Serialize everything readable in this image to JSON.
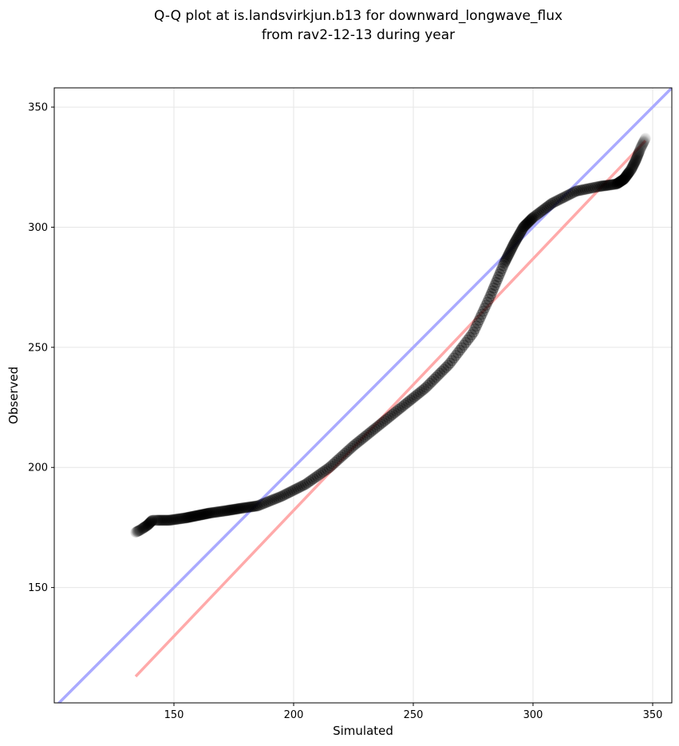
{
  "chart_data": {
    "type": "scatter",
    "title_lines": [
      "Q-Q plot at is.landsvirkjun.b13 for downward_longwave_flux",
      "from rav2-12-13 during year"
    ],
    "xlabel": "Simulated",
    "ylabel": "Observed",
    "xlim": [
      100,
      358
    ],
    "ylim": [
      102,
      358
    ],
    "xticks": [
      150,
      200,
      250,
      300,
      350
    ],
    "yticks": [
      150,
      200,
      250,
      300,
      350
    ],
    "grid": true,
    "reference_line": {
      "name": "1:1 line",
      "color": "#aaaaff",
      "from": [
        100,
        100
      ],
      "to": [
        358,
        358
      ]
    },
    "fit_line": {
      "name": "fit line",
      "color": "#ffaaaa",
      "from": [
        134,
        113
      ],
      "to": [
        347,
        336
      ]
    },
    "quantile_curve_anchors": {
      "x": [
        134,
        136,
        139,
        141,
        148,
        155,
        160,
        165,
        172,
        178,
        185,
        195,
        205,
        215,
        225,
        235,
        245,
        255,
        265,
        275,
        282,
        288,
        292,
        296,
        300,
        308,
        318,
        328,
        335,
        338,
        341,
        343,
        345,
        347
      ],
      "y": [
        173,
        174,
        176,
        178,
        178,
        179,
        180,
        181,
        182,
        183,
        184,
        188,
        193,
        200,
        209,
        217,
        225,
        233,
        243,
        256,
        271,
        285,
        293,
        300,
        304,
        310,
        315,
        317,
        318,
        320,
        324,
        328,
        333,
        337
      ]
    },
    "point_count": 400,
    "point_color": "#000000"
  }
}
